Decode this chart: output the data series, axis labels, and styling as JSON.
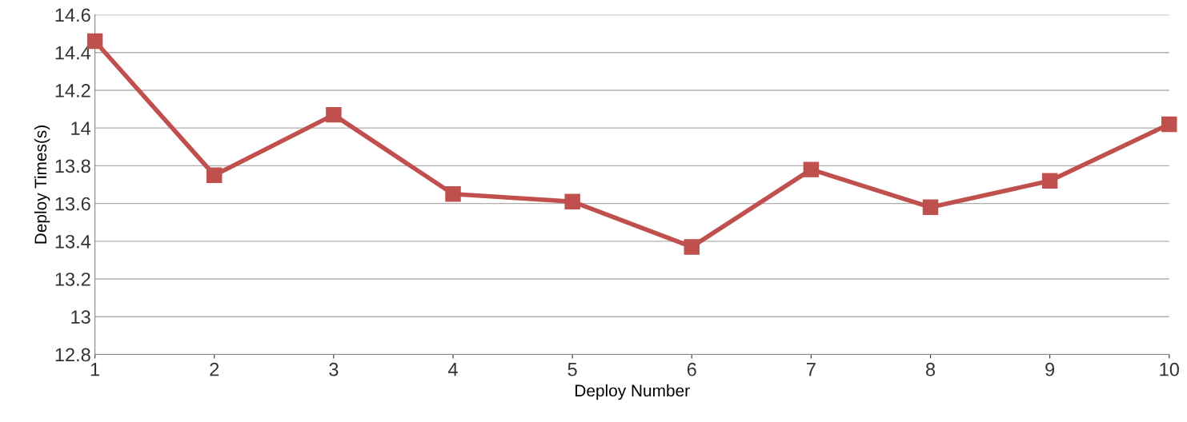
{
  "chart_data": {
    "type": "line",
    "xlabel": "Deploy Number",
    "ylabel": "Deploy Times(s)",
    "x": [
      1,
      2,
      3,
      4,
      5,
      6,
      7,
      8,
      9,
      10
    ],
    "series": [
      {
        "color": "#c0504d",
        "values": [
          14.46,
          13.75,
          14.07,
          13.65,
          13.61,
          13.37,
          13.78,
          13.58,
          13.72,
          14.02
        ]
      }
    ],
    "xlim": [
      1,
      10
    ],
    "xticks": [
      1,
      2,
      3,
      4,
      5,
      6,
      7,
      8,
      9,
      10
    ],
    "ylim": [
      12.8,
      14.6
    ],
    "yticks": [
      12.8,
      13,
      13.2,
      13.4,
      13.6,
      13.8,
      14,
      14.2,
      14.4,
      14.6
    ],
    "grid": "y",
    "marker": "square",
    "line_style": "solid"
  }
}
